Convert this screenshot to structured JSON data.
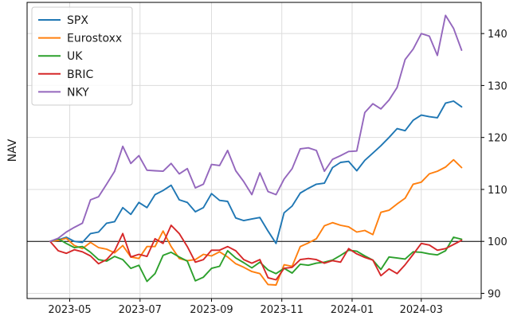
{
  "chart_data": {
    "type": "line",
    "title": "",
    "xlabel": "",
    "ylabel": "NAV",
    "ylim": [
      89,
      146
    ],
    "xlim": [
      "2023-03-25",
      "2024-04-22"
    ],
    "y_ticks": [
      90,
      100,
      110,
      120,
      130,
      140
    ],
    "y_axis_side": "right",
    "x_ticks": [
      "2023-05",
      "2023-07",
      "2023-09",
      "2023-11",
      "2024-01",
      "2024-03"
    ],
    "grid": true,
    "reference_line": 100,
    "legend_position": "top-left",
    "x": [
      "2023-04-14",
      "2023-04-21",
      "2023-04-28",
      "2023-05-05",
      "2023-05-12",
      "2023-05-19",
      "2023-05-26",
      "2023-06-02",
      "2023-06-09",
      "2023-06-16",
      "2023-06-23",
      "2023-06-30",
      "2023-07-07",
      "2023-07-14",
      "2023-07-21",
      "2023-07-28",
      "2023-08-04",
      "2023-08-11",
      "2023-08-18",
      "2023-08-25",
      "2023-09-01",
      "2023-09-08",
      "2023-09-15",
      "2023-09-22",
      "2023-09-29",
      "2023-10-06",
      "2023-10-13",
      "2023-10-20",
      "2023-10-27",
      "2023-11-03",
      "2023-11-10",
      "2023-11-17",
      "2023-11-24",
      "2023-12-01",
      "2023-12-08",
      "2023-12-15",
      "2023-12-22",
      "2023-12-29",
      "2024-01-05",
      "2024-01-12",
      "2024-01-19",
      "2024-01-26",
      "2024-02-02",
      "2024-02-09",
      "2024-02-16",
      "2024-02-23",
      "2024-03-01",
      "2024-03-08",
      "2024-03-15",
      "2024-03-22",
      "2024-03-29",
      "2024-04-05"
    ],
    "series": [
      {
        "name": "SPX",
        "color": "#1f77b4",
        "values": [
          100.0,
          100.3,
          100.8,
          100.0,
          99.8,
          101.5,
          101.8,
          103.5,
          103.8,
          106.5,
          105.2,
          107.5,
          106.5,
          109.0,
          109.8,
          110.8,
          108.0,
          107.5,
          105.7,
          106.5,
          109.2,
          107.9,
          107.7,
          104.5,
          104.0,
          104.3,
          104.6,
          102.0,
          99.6,
          105.5,
          106.8,
          109.3,
          110.2,
          111.0,
          111.2,
          114.2,
          115.2,
          115.4,
          113.6,
          115.6,
          117.0,
          118.4,
          120.0,
          121.7,
          121.3,
          123.3,
          124.3,
          124.0,
          123.8,
          126.6,
          127.0,
          125.9
        ]
      },
      {
        "name": "Eurostoxx",
        "color": "#ff7f0e",
        "values": [
          100.0,
          100.2,
          100.6,
          99.2,
          98.6,
          99.8,
          98.8,
          98.5,
          97.8,
          99.2,
          97.0,
          96.7,
          99.0,
          99.0,
          102.0,
          99.0,
          96.7,
          96.3,
          96.5,
          97.5,
          97.2,
          98.0,
          97.0,
          95.7,
          95.0,
          94.2,
          93.8,
          91.7,
          91.6,
          95.5,
          95.2,
          99.0,
          99.7,
          100.5,
          103.0,
          103.6,
          103.1,
          102.8,
          101.8,
          102.1,
          101.3,
          105.6,
          106.0,
          107.2,
          108.3,
          111.0,
          111.4,
          113.0,
          113.5,
          114.3,
          115.7,
          114.2
        ]
      },
      {
        "name": "UK",
        "color": "#2ca02c",
        "values": [
          100.0,
          100.5,
          99.6,
          98.8,
          99.0,
          97.9,
          96.5,
          96.2,
          97.1,
          96.5,
          94.8,
          95.4,
          92.3,
          93.8,
          97.3,
          97.9,
          97.0,
          96.2,
          92.4,
          93.1,
          94.8,
          95.2,
          98.2,
          96.8,
          95.9,
          94.9,
          96.0,
          94.5,
          93.8,
          94.8,
          93.9,
          95.6,
          95.4,
          95.8,
          96.0,
          96.4,
          97.3,
          98.3,
          98.1,
          97.2,
          96.4,
          94.6,
          97.0,
          96.8,
          96.6,
          98.0,
          97.9,
          97.6,
          97.4,
          98.2,
          100.8,
          100.4
        ]
      },
      {
        "name": "BRIC",
        "color": "#d62728",
        "values": [
          100.0,
          98.2,
          97.7,
          98.4,
          98.0,
          97.2,
          95.7,
          96.5,
          98.2,
          101.5,
          97.0,
          97.5,
          97.1,
          100.5,
          99.6,
          103.1,
          101.5,
          99.0,
          96.0,
          96.5,
          98.3,
          98.3,
          99.0,
          98.2,
          96.5,
          95.8,
          96.5,
          93.0,
          92.6,
          94.8,
          95.0,
          96.5,
          96.7,
          96.5,
          95.8,
          96.3,
          96.0,
          98.6,
          97.6,
          96.9,
          96.4,
          93.4,
          94.7,
          93.8,
          95.5,
          97.5,
          99.6,
          99.3,
          98.3,
          98.6,
          99.4,
          100.2
        ]
      },
      {
        "name": "NKY",
        "color": "#9467bd",
        "values": [
          100.0,
          100.6,
          101.8,
          102.7,
          103.5,
          108.0,
          108.6,
          111.0,
          113.5,
          118.3,
          115.0,
          116.5,
          113.7,
          113.6,
          113.5,
          115.0,
          113.0,
          114.0,
          110.3,
          111.0,
          114.8,
          114.6,
          117.5,
          113.6,
          111.5,
          109.0,
          113.2,
          109.6,
          109.0,
          112.0,
          114.0,
          117.8,
          118.0,
          117.5,
          113.5,
          115.8,
          116.5,
          117.3,
          117.4,
          124.8,
          126.5,
          125.5,
          127.2,
          129.6,
          135.0,
          137.0,
          140.0,
          139.5,
          135.8,
          143.5,
          141.0,
          136.8
        ]
      }
    ]
  }
}
